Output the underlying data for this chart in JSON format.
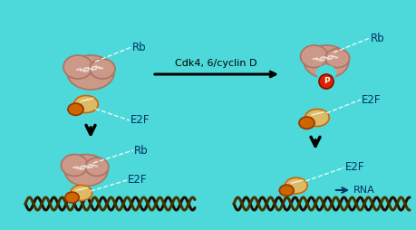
{
  "bg_color": "#4DD9D9",
  "rb_color_main": "#CC9988",
  "rb_color_dark": "#AA7766",
  "e2f_color_light": "#DDBB66",
  "e2f_color_main": "#CC9933",
  "e2f_color_dark": "#CC6600",
  "p_color": "#DD2200",
  "label_color": "#003366",
  "dna_dark": "#221100",
  "dna_mid": "#443300",
  "title_arrow": "Cdk4, 6/cyclin D",
  "label_rb": "Rb",
  "label_e2f": "E2F",
  "label_rna": "RNA",
  "figw": 4.6,
  "figh": 2.54,
  "dpi": 100
}
